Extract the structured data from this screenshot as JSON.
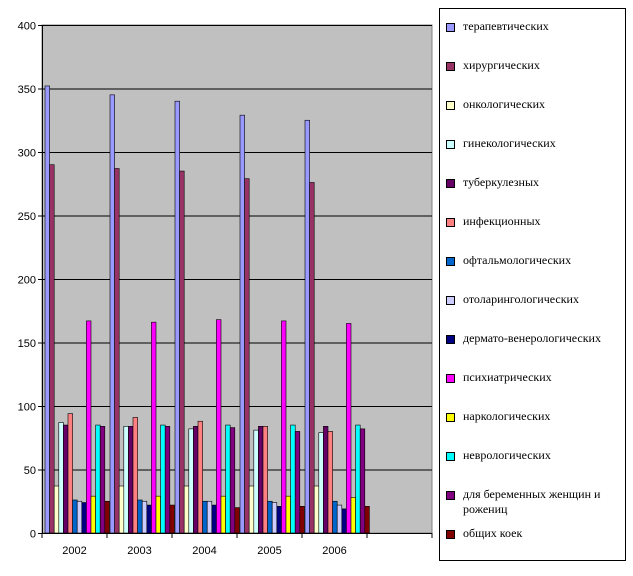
{
  "chart_data": {
    "type": "bar",
    "categories": [
      "2002",
      "2003",
      "2004",
      "2005",
      "2006"
    ],
    "ylim": [
      0,
      400
    ],
    "yticks": [
      "0",
      "50",
      "100",
      "150",
      "200",
      "250",
      "300",
      "350",
      "400"
    ],
    "grid": true,
    "legend_position": "right",
    "plot_background": "#C0C0C0",
    "series": [
      {
        "name": "терапевтических",
        "color": "#9999FF",
        "values": [
          352,
          345,
          340,
          329,
          325
        ]
      },
      {
        "name": "хирургических",
        "color": "#993366",
        "values": [
          290,
          287,
          285,
          279,
          276
        ]
      },
      {
        "name": "онкологических",
        "color": "#FFFFCC",
        "values": [
          37,
          37,
          37,
          37,
          37
        ]
      },
      {
        "name": "гинекологических",
        "color": "#CCFFFF",
        "values": [
          87,
          84,
          82,
          81,
          79
        ]
      },
      {
        "name": "туберкулезных",
        "color": "#660066",
        "values": [
          85,
          84,
          84,
          84,
          84
        ]
      },
      {
        "name": "инфекционных",
        "color": "#FF8080",
        "values": [
          94,
          91,
          88,
          84,
          80
        ]
      },
      {
        "name": "офтальмологических",
        "color": "#0066CC",
        "values": [
          26,
          26,
          25,
          25,
          25
        ]
      },
      {
        "name": "отоларингологических",
        "color": "#CCCCFF",
        "values": [
          25,
          25,
          25,
          24,
          22
        ]
      },
      {
        "name": "дермато-венерологических",
        "color": "#000080",
        "values": [
          24,
          22,
          22,
          21,
          19
        ]
      },
      {
        "name": "психиатрических",
        "color": "#FF00FF",
        "values": [
          167,
          166,
          168,
          167,
          165
        ]
      },
      {
        "name": "наркологических",
        "color": "#FFFF00",
        "values": [
          29,
          29,
          29,
          29,
          28
        ]
      },
      {
        "name": "неврологических",
        "color": "#00FFFF",
        "values": [
          85,
          85,
          85,
          85,
          85
        ]
      },
      {
        "name": "для беременных женщин и рожениц",
        "color": "#800080",
        "values": [
          84,
          84,
          83,
          80,
          82
        ]
      },
      {
        "name": "общих коек",
        "color": "#800000",
        "values": [
          25,
          22,
          20,
          21,
          21
        ]
      }
    ]
  }
}
